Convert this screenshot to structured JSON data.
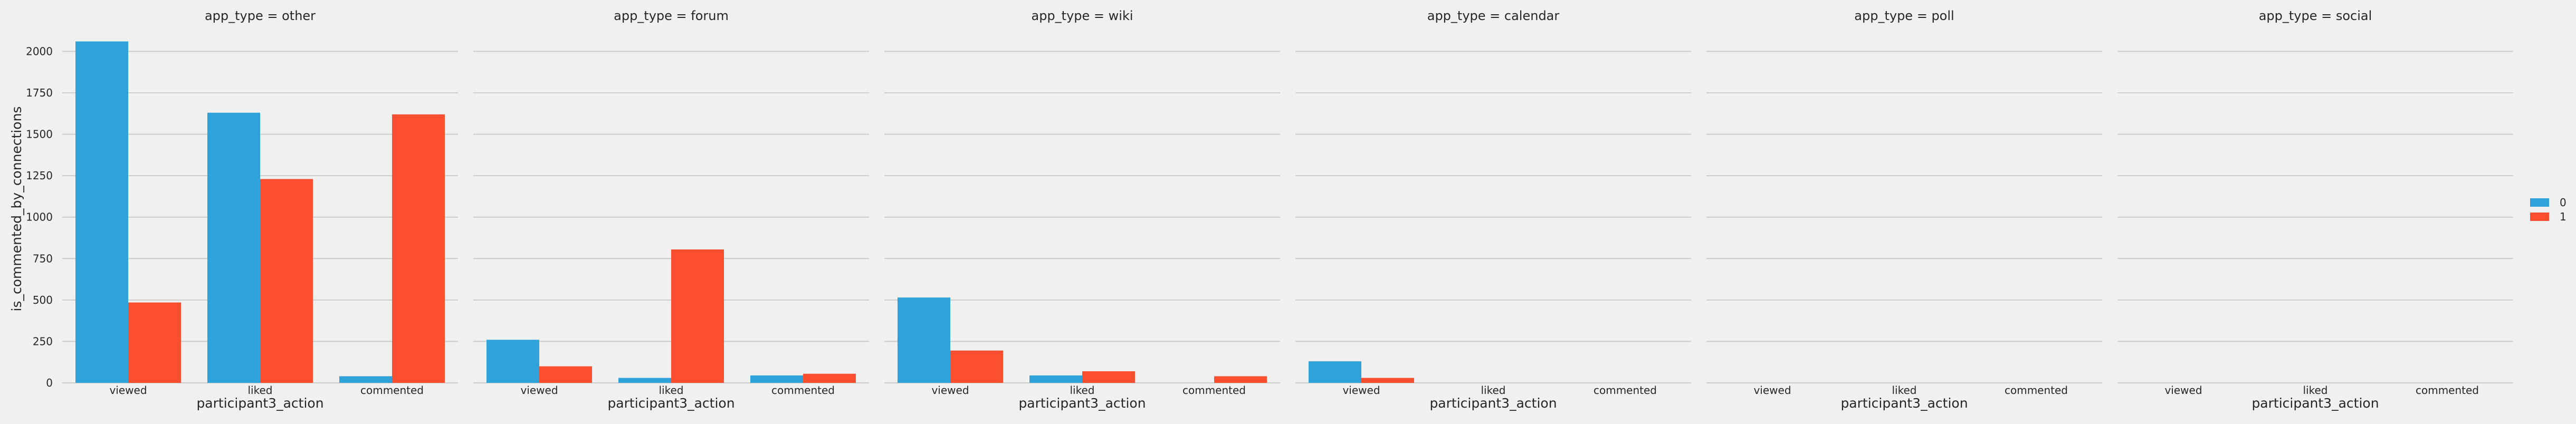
{
  "chart_data": {
    "type": "bar",
    "facet_variable": "app_type",
    "panels": [
      {
        "title": "app_type = other"
      },
      {
        "title": "app_type = forum"
      },
      {
        "title": "app_type = wiki"
      },
      {
        "title": "app_type = calendar"
      },
      {
        "title": "app_type = poll"
      },
      {
        "title": "app_type = social"
      }
    ],
    "categories": [
      "viewed",
      "liked",
      "commented"
    ],
    "xlabel": "participant3_action",
    "ylabel": "is_commented_by_connections",
    "ylim": [
      0,
      2100
    ],
    "yticks": [
      0,
      250,
      500,
      750,
      1000,
      1250,
      1500,
      1750,
      2000
    ],
    "grid": true,
    "legend_position": "right",
    "series": [
      {
        "name": "0",
        "color": "#30a2da",
        "values_by_panel": [
          [
            2060,
            1630,
            40
          ],
          [
            260,
            30,
            45
          ],
          [
            515,
            45,
            0
          ],
          [
            130,
            0,
            0
          ],
          [
            0,
            0,
            0
          ],
          [
            0,
            0,
            0
          ]
        ]
      },
      {
        "name": "1",
        "color": "#fc4f30",
        "values_by_panel": [
          [
            485,
            1230,
            1620
          ],
          [
            100,
            805,
            55
          ],
          [
            195,
            70,
            40
          ],
          [
            30,
            0,
            0
          ],
          [
            0,
            0,
            0
          ],
          [
            0,
            0,
            0
          ]
        ]
      }
    ]
  }
}
